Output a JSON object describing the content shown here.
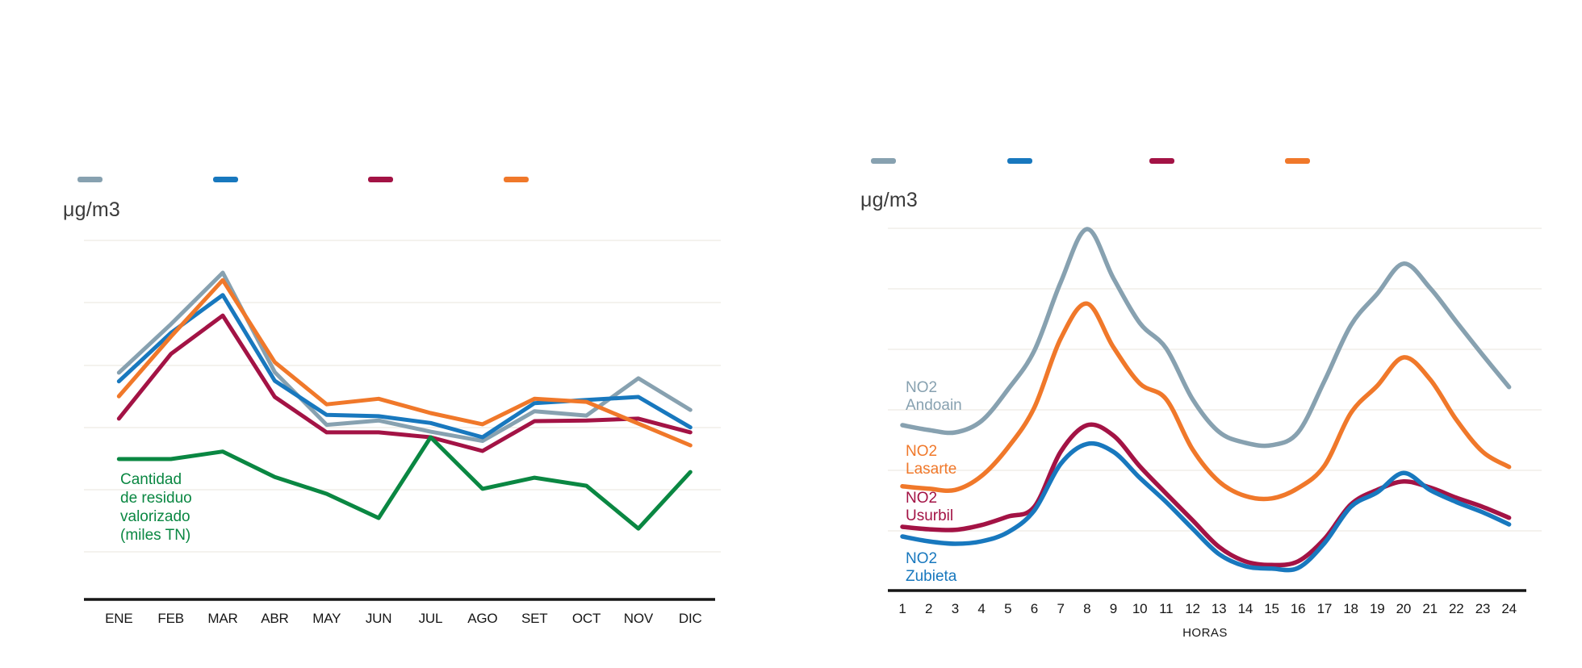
{
  "page": {
    "background": "#ffffff",
    "axis_color": "#161616",
    "grid_color": "#f0ede9"
  },
  "chart_data": [
    {
      "type": "line",
      "title": "μg/m3",
      "unit_label": "μg/m3",
      "xlabel": "",
      "ylabel": "",
      "y_axis_labels_visible": false,
      "grid": true,
      "legend_position": "top",
      "legend_labels_visible": false,
      "legend_swatches": [
        "#87a1b0",
        "#1878be",
        "#a31345",
        "#f0782a"
      ],
      "categories": [
        "ENE",
        "FEB",
        "MAR",
        "ABR",
        "MAY",
        "JUN",
        "JUL",
        "AGO",
        "SET",
        "OCT",
        "NOV",
        "DIC"
      ],
      "ylim": [
        0,
        65
      ],
      "series": [
        {
          "name": "",
          "color": "#87a1b0",
          "values": [
            36.5,
            44.3,
            52.6,
            36.6,
            28.1,
            28.8,
            27.0,
            25.5,
            30.3,
            29.6,
            35.6,
            30.5
          ]
        },
        {
          "name": "",
          "color": "#1878be",
          "values": [
            35.1,
            42.9,
            49.0,
            35.2,
            29.7,
            29.5,
            28.4,
            26.1,
            31.6,
            32.1,
            32.6,
            27.7
          ]
        },
        {
          "name": "",
          "color": "#a31345",
          "values": [
            29.1,
            39.5,
            45.7,
            32.6,
            26.9,
            26.9,
            26.1,
            23.9,
            28.7,
            28.8,
            29.1,
            26.9
          ]
        },
        {
          "name": "",
          "color": "#f0782a",
          "values": [
            32.7,
            42.3,
            51.4,
            38.2,
            31.4,
            32.3,
            30.0,
            28.2,
            32.3,
            31.8,
            28.3,
            24.8
          ]
        },
        {
          "name": "Cantidad de residuo valorizado (miles TN)",
          "color": "#0a8742",
          "annotation_lines": "Cantidad\nde residuo\nvalorizado\n(miles TN)",
          "values": [
            22.6,
            22.6,
            23.8,
            19.7,
            17.0,
            13.1,
            26.1,
            17.8,
            19.6,
            18.3,
            11.4,
            20.5
          ]
        }
      ]
    },
    {
      "type": "line",
      "title": "μg/m3",
      "unit_label": "μg/m3",
      "xlabel": "HORAS",
      "ylabel": "",
      "y_axis_labels_visible": false,
      "grid": true,
      "legend_position": "top",
      "legend_labels_visible": false,
      "legend_swatches": [
        "#87a1b0",
        "#1878be",
        "#a31345",
        "#f0782a"
      ],
      "categories": [
        "1",
        "2",
        "3",
        "4",
        "5",
        "6",
        "7",
        "8",
        "9",
        "10",
        "11",
        "12",
        "13",
        "14",
        "15",
        "16",
        "17",
        "18",
        "19",
        "20",
        "21",
        "22",
        "23",
        "24"
      ],
      "ylim": [
        0,
        65
      ],
      "series": [
        {
          "name": "NO2 Andoain",
          "label": "NO2\nAndoain",
          "color": "#87a1b0",
          "values": [
            27.6,
            26.8,
            26.4,
            28.3,
            33.5,
            39.9,
            51.2,
            60.0,
            51.9,
            44.5,
            40.3,
            31.9,
            26.5,
            24.7,
            24.3,
            26.4,
            34.9,
            44.1,
            49.3,
            54.3,
            50.3,
            44.7,
            39.2,
            33.9
          ]
        },
        {
          "name": "NO2 Lasarte",
          "label": "NO2\nLasarte",
          "color": "#f0782a",
          "values": [
            17.5,
            17.1,
            16.9,
            19.2,
            23.9,
            30.5,
            41.9,
            47.7,
            40.5,
            34.5,
            31.9,
            23.6,
            18.3,
            15.9,
            15.5,
            17.2,
            20.9,
            29.6,
            34.1,
            38.8,
            35.2,
            28.5,
            23.2,
            20.7
          ]
        },
        {
          "name": "NO2 Usurbil",
          "label": "NO2\nUsurbil",
          "color": "#a31345",
          "values": [
            10.8,
            10.4,
            10.3,
            11.1,
            12.5,
            14.1,
            23.2,
            27.6,
            25.9,
            20.8,
            16.3,
            11.9,
            7.5,
            5.1,
            4.5,
            5.1,
            8.8,
            14.5,
            16.9,
            18.3,
            17.3,
            15.6,
            14.1,
            12.3
          ]
        },
        {
          "name": "NO2 Zubieta",
          "label": "NO2\nZubieta",
          "color": "#1878be",
          "values": [
            9.2,
            8.4,
            8.0,
            8.4,
            9.9,
            13.5,
            21.2,
            24.5,
            23.2,
            18.9,
            14.9,
            10.5,
            6.3,
            4.3,
            3.9,
            4.0,
            8.1,
            14.1,
            16.5,
            19.7,
            16.9,
            14.9,
            13.2,
            11.2
          ]
        }
      ]
    }
  ]
}
